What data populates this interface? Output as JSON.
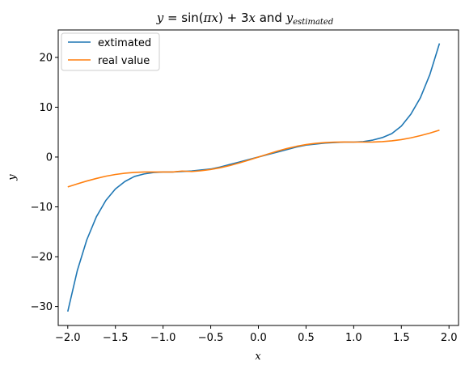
{
  "chart_data": {
    "type": "line",
    "title": {
      "prefix_y": "y",
      "eq": " = sin(",
      "pi": "π",
      "x1": "x",
      "mid": ") + 3",
      "x2": "x",
      "and": " and ",
      "y2": "y",
      "sub": "estimated"
    },
    "xlabel": "x",
    "ylabel": "y",
    "xlim": [
      -2.1,
      2.1
    ],
    "ylim": [
      -33.8,
      25.5
    ],
    "xticks": [
      -2.0,
      -1.5,
      -1.0,
      -0.5,
      0.0,
      0.5,
      1.0,
      1.5,
      2.0
    ],
    "xtick_labels": [
      "−2.0",
      "−1.5",
      "−1.0",
      "−0.5",
      "0.0",
      "0.5",
      "1.0",
      "1.5",
      "2.0"
    ],
    "yticks": [
      -30,
      -20,
      -10,
      0,
      10,
      20
    ],
    "ytick_labels": [
      "−30",
      "−20",
      "−10",
      "0",
      "10",
      "20"
    ],
    "grid": false,
    "legend_position": "top-left",
    "series": [
      {
        "name": "extimated",
        "color": "#1f77b4",
        "x": [
          -2.0,
          -1.9,
          -1.8,
          -1.7,
          -1.6,
          -1.5,
          -1.4,
          -1.3,
          -1.2,
          -1.1,
          -1.0,
          -0.9,
          -0.8,
          -0.7,
          -0.6,
          -0.5,
          -0.4,
          -0.3,
          -0.2,
          -0.1,
          0.0,
          0.1,
          0.2,
          0.3,
          0.4,
          0.5,
          0.6,
          0.7,
          0.8,
          0.9,
          1.0,
          1.1,
          1.2,
          1.3,
          1.4,
          1.5,
          1.6,
          1.7,
          1.8,
          1.9
        ],
        "y": [
          -31.0,
          -22.8,
          -16.6,
          -12.0,
          -8.7,
          -6.4,
          -4.9,
          -3.9,
          -3.4,
          -3.1,
          -3.0,
          -3.0,
          -2.9,
          -2.8,
          -2.6,
          -2.4,
          -2.0,
          -1.5,
          -1.0,
          -0.5,
          0.0,
          0.5,
          1.0,
          1.5,
          2.0,
          2.4,
          2.6,
          2.8,
          2.9,
          3.0,
          3.0,
          3.1,
          3.4,
          3.9,
          4.7,
          6.2,
          8.6,
          11.9,
          16.6,
          22.8
        ]
      },
      {
        "name": "real value",
        "color": "#ff7f0e",
        "x": [
          -2.0,
          -1.9,
          -1.8,
          -1.7,
          -1.6,
          -1.5,
          -1.4,
          -1.3,
          -1.2,
          -1.1,
          -1.0,
          -0.9,
          -0.8,
          -0.7,
          -0.6,
          -0.5,
          -0.4,
          -0.3,
          -0.2,
          -0.1,
          0.0,
          0.1,
          0.2,
          0.3,
          0.4,
          0.5,
          0.6,
          0.7,
          0.8,
          0.9,
          1.0,
          1.1,
          1.2,
          1.3,
          1.4,
          1.5,
          1.6,
          1.7,
          1.8,
          1.9
        ],
        "y": [
          -6.0,
          -5.39,
          -4.81,
          -4.3,
          -3.85,
          -3.5,
          -3.25,
          -3.09,
          -3.01,
          -3.0,
          -3.0,
          -3.01,
          -2.81,
          -2.91,
          -2.75,
          -2.5,
          -2.15,
          -1.71,
          -1.19,
          -0.61,
          0.0,
          0.61,
          1.19,
          1.71,
          2.15,
          2.5,
          2.75,
          2.91,
          2.99,
          3.01,
          3.0,
          3.0,
          3.01,
          3.09,
          3.25,
          3.5,
          3.85,
          4.3,
          4.81,
          5.39
        ]
      }
    ]
  }
}
